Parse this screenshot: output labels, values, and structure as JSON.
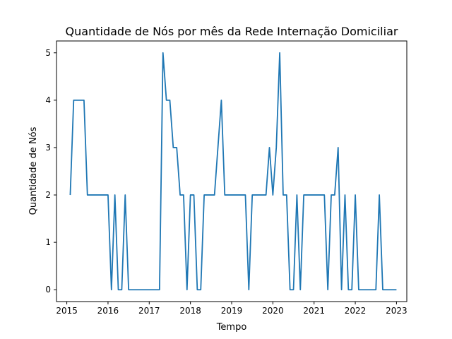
{
  "chart_data": {
    "type": "line",
    "title": "Quantidade de Nós por mês da Rede Internação Domiciliar",
    "xlabel": "Tempo",
    "ylabel": "Quantidade de Nós",
    "xlim": [
      "2014-10-01",
      "2023-04-01"
    ],
    "ylim": [
      -0.25,
      5.25
    ],
    "xticks": [
      "2015",
      "2016",
      "2017",
      "2018",
      "2019",
      "2020",
      "2021",
      "2022",
      "2023"
    ],
    "yticks": [
      "0",
      "1",
      "2",
      "3",
      "4",
      "5"
    ],
    "grid": false,
    "series": [
      {
        "color": "#1f77b4",
        "x": [
          "2015-02",
          "2015-03",
          "2015-04",
          "2015-05",
          "2015-06",
          "2015-07",
          "2015-08",
          "2015-09",
          "2015-10",
          "2015-11",
          "2015-12",
          "2016-01",
          "2016-02",
          "2016-03",
          "2016-04",
          "2016-05",
          "2016-06",
          "2016-07",
          "2016-08",
          "2016-09",
          "2016-10",
          "2016-11",
          "2016-12",
          "2017-01",
          "2017-02",
          "2017-03",
          "2017-04",
          "2017-05",
          "2017-06",
          "2017-07",
          "2017-08",
          "2017-09",
          "2017-10",
          "2017-11",
          "2017-12",
          "2018-01",
          "2018-02",
          "2018-03",
          "2018-04",
          "2018-05",
          "2018-06",
          "2018-07",
          "2018-08",
          "2018-09",
          "2018-10",
          "2018-11",
          "2018-12",
          "2019-01",
          "2019-02",
          "2019-03",
          "2019-04",
          "2019-05",
          "2019-06",
          "2019-07",
          "2019-08",
          "2019-09",
          "2019-10",
          "2019-11",
          "2019-12",
          "2020-01",
          "2020-02",
          "2020-03",
          "2020-04",
          "2020-05",
          "2020-06",
          "2020-07",
          "2020-08",
          "2020-09",
          "2020-10",
          "2020-11",
          "2020-12",
          "2021-01",
          "2021-02",
          "2021-03",
          "2021-04",
          "2021-05",
          "2021-06",
          "2021-07",
          "2021-08",
          "2021-09",
          "2021-10",
          "2021-11",
          "2021-12",
          "2022-01",
          "2022-02",
          "2022-03",
          "2022-04",
          "2022-05",
          "2022-06",
          "2022-07",
          "2022-08",
          "2022-09",
          "2022-10",
          "2022-11",
          "2022-12",
          "2023-01"
        ],
        "values": [
          2,
          4,
          4,
          4,
          4,
          2,
          2,
          2,
          2,
          2,
          2,
          2,
          0,
          2,
          0,
          0,
          2,
          0,
          0,
          0,
          0,
          0,
          0,
          0,
          0,
          0,
          0,
          5,
          4,
          4,
          3,
          3,
          2,
          2,
          0,
          2,
          2,
          0,
          0,
          2,
          2,
          2,
          2,
          3,
          4,
          2,
          2,
          2,
          2,
          2,
          2,
          2,
          0,
          2,
          2,
          2,
          2,
          2,
          3,
          2,
          3,
          5,
          2,
          2,
          0,
          0,
          2,
          0,
          2,
          2,
          2,
          2,
          2,
          2,
          2,
          0,
          2,
          2,
          3,
          0,
          2,
          0,
          0,
          2,
          0,
          0,
          0,
          0,
          0,
          0,
          2,
          0,
          0,
          0,
          0,
          0
        ]
      }
    ]
  }
}
